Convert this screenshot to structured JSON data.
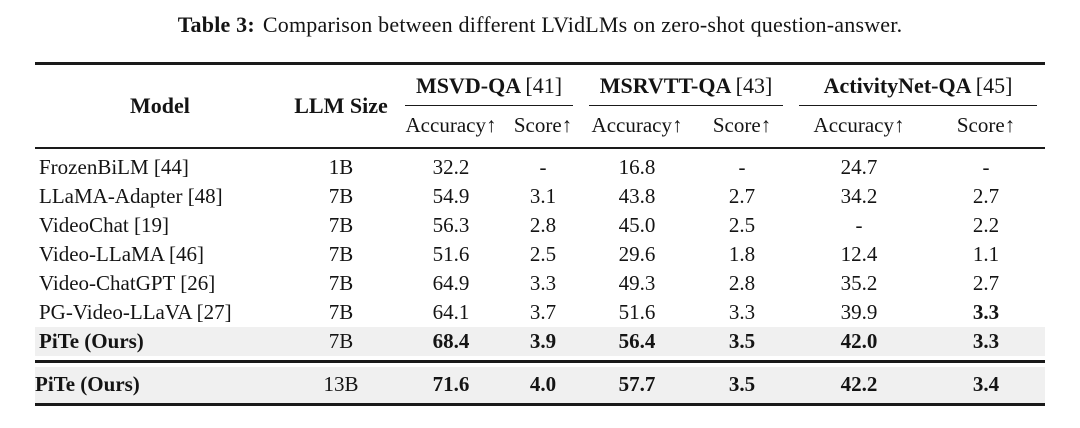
{
  "caption": {
    "label": "Table 3:",
    "text": "Comparison between different LVidLMs on zero-shot question-answer."
  },
  "table": {
    "columns": {
      "model": "Model",
      "llm_size": "LLM Size"
    },
    "groups": [
      {
        "name": "MSVD-QA",
        "cite": "[41]",
        "sub": [
          "Accuracy↑",
          "Score↑"
        ]
      },
      {
        "name": "MSRVTT-QA",
        "cite": "[43]",
        "sub": [
          "Accuracy↑",
          "Score↑"
        ]
      },
      {
        "name": "ActivityNet-QA",
        "cite": "[45]",
        "sub": [
          "Accuracy↑",
          "Score↑"
        ]
      }
    ],
    "highlight_color": "#f0f0f0",
    "sections": [
      {
        "rows": [
          {
            "model": "FrozenBiLM [44]",
            "bold_model": false,
            "size": "1B",
            "highlight": false,
            "cells": [
              {
                "v": "32.2",
                "bold": false
              },
              {
                "v": "-",
                "bold": false
              },
              {
                "v": "16.8",
                "bold": false
              },
              {
                "v": "-",
                "bold": false
              },
              {
                "v": "24.7",
                "bold": false
              },
              {
                "v": "-",
                "bold": false
              }
            ]
          },
          {
            "model": "LLaMA-Adapter [48]",
            "bold_model": false,
            "size": "7B",
            "highlight": false,
            "cells": [
              {
                "v": "54.9",
                "bold": false
              },
              {
                "v": "3.1",
                "bold": false
              },
              {
                "v": "43.8",
                "bold": false
              },
              {
                "v": "2.7",
                "bold": false
              },
              {
                "v": "34.2",
                "bold": false
              },
              {
                "v": "2.7",
                "bold": false
              }
            ]
          },
          {
            "model": "VideoChat [19]",
            "bold_model": false,
            "size": "7B",
            "highlight": false,
            "cells": [
              {
                "v": "56.3",
                "bold": false
              },
              {
                "v": "2.8",
                "bold": false
              },
              {
                "v": "45.0",
                "bold": false
              },
              {
                "v": "2.5",
                "bold": false
              },
              {
                "v": "-",
                "bold": false
              },
              {
                "v": "2.2",
                "bold": false
              }
            ]
          },
          {
            "model": "Video-LLaMA [46]",
            "bold_model": false,
            "size": "7B",
            "highlight": false,
            "cells": [
              {
                "v": "51.6",
                "bold": false
              },
              {
                "v": "2.5",
                "bold": false
              },
              {
                "v": "29.6",
                "bold": false
              },
              {
                "v": "1.8",
                "bold": false
              },
              {
                "v": "12.4",
                "bold": false
              },
              {
                "v": "1.1",
                "bold": false
              }
            ]
          },
          {
            "model": "Video-ChatGPT [26]",
            "bold_model": false,
            "size": "7B",
            "highlight": false,
            "cells": [
              {
                "v": "64.9",
                "bold": false
              },
              {
                "v": "3.3",
                "bold": false
              },
              {
                "v": "49.3",
                "bold": false
              },
              {
                "v": "2.8",
                "bold": false
              },
              {
                "v": "35.2",
                "bold": false
              },
              {
                "v": "2.7",
                "bold": false
              }
            ]
          },
          {
            "model": "PG-Video-LLaVA [27]",
            "bold_model": false,
            "size": "7B",
            "highlight": false,
            "cells": [
              {
                "v": "64.1",
                "bold": false
              },
              {
                "v": "3.7",
                "bold": false
              },
              {
                "v": "51.6",
                "bold": false
              },
              {
                "v": "3.3",
                "bold": false
              },
              {
                "v": "39.9",
                "bold": false
              },
              {
                "v": "3.3",
                "bold": true
              }
            ]
          },
          {
            "model": "PiTe (Ours)",
            "bold_model": true,
            "size": "7B",
            "highlight": true,
            "cells": [
              {
                "v": "68.4",
                "bold": true
              },
              {
                "v": "3.9",
                "bold": true
              },
              {
                "v": "56.4",
                "bold": true
              },
              {
                "v": "3.5",
                "bold": true
              },
              {
                "v": "42.0",
                "bold": true
              },
              {
                "v": "3.3",
                "bold": true
              }
            ]
          }
        ]
      },
      {
        "rows": [
          {
            "model": "PiTe (Ours)",
            "bold_model": true,
            "size": "13B",
            "highlight": true,
            "cells": [
              {
                "v": "71.6",
                "bold": true
              },
              {
                "v": "4.0",
                "bold": true
              },
              {
                "v": "57.7",
                "bold": true
              },
              {
                "v": "3.5",
                "bold": true
              },
              {
                "v": "42.2",
                "bold": true
              },
              {
                "v": "3.4",
                "bold": true
              }
            ]
          }
        ]
      }
    ]
  }
}
